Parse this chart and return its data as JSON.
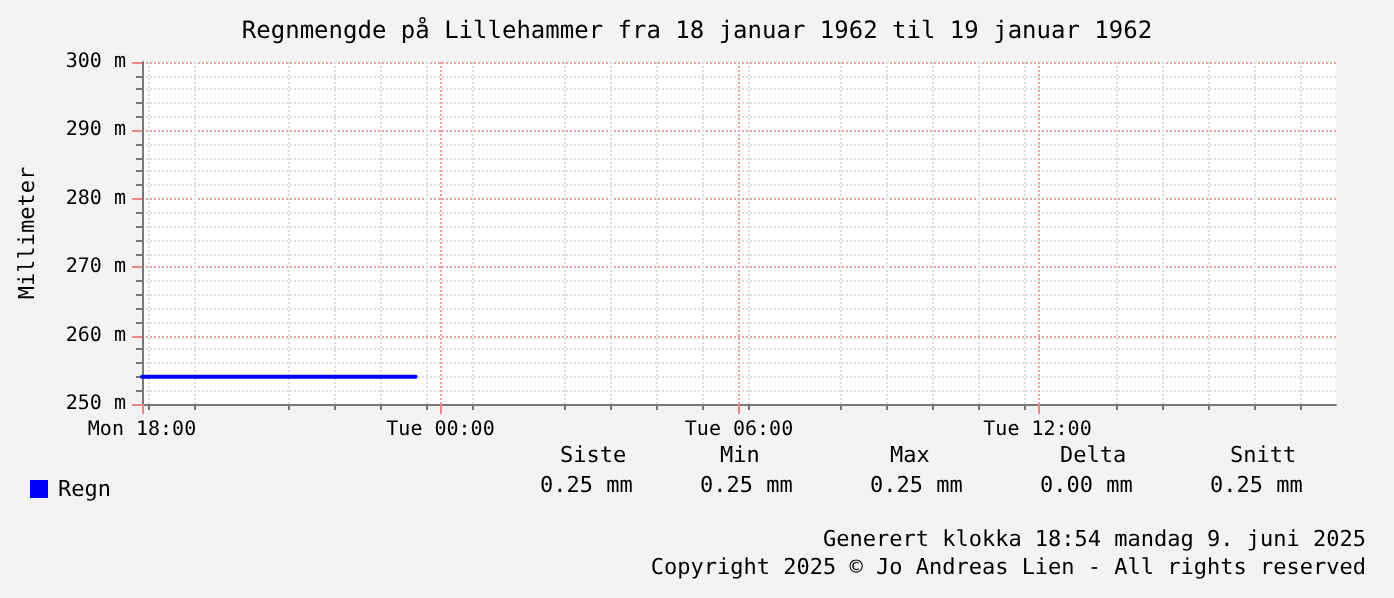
{
  "chart_data": {
    "type": "line",
    "title": "Regnmengde på Lillehammer fra 18 januar 1962 til 19 januar 1962",
    "ylabel": "Millimeter",
    "x": [
      "1962-01-18T18:00",
      "1962-01-18T23:30"
    ],
    "series": [
      {
        "name": "Regn",
        "color": "#0000ff",
        "values": [
          254,
          254
        ]
      }
    ],
    "xlim": [
      "1962-01-18T18:00",
      "1962-01-19T18:00"
    ],
    "xticks": [
      {
        "value": "1962-01-18T18:00",
        "label": "Mon 18:00"
      },
      {
        "value": "1962-01-19T00:00",
        "label": "Tue 00:00"
      },
      {
        "value": "1962-01-19T06:00",
        "label": "Tue 06:00"
      },
      {
        "value": "1962-01-19T12:00",
        "label": "Tue 12:00"
      }
    ],
    "ylim": [
      250,
      300
    ],
    "yticks": [
      {
        "value": 250,
        "label": "250 m"
      },
      {
        "value": 260,
        "label": "260 m"
      },
      {
        "value": 270,
        "label": "270 m"
      },
      {
        "value": 280,
        "label": "280 m"
      },
      {
        "value": 290,
        "label": "290 m"
      },
      {
        "value": 300,
        "label": "300 m"
      }
    ],
    "grid": true,
    "legend": "bottom left",
    "marker": "none",
    "line_style": "solid",
    "annotations": [
      "Siste",
      "Min",
      "Max",
      "Delta",
      "Snitt",
      "0.25 mm",
      "0.25 mm",
      "0.25 mm",
      "0.00 mm",
      "0.25 mm",
      "Generert klokka 18:54 mandag 9. juni 2025",
      "Copyright 2025 © Jo Andreas Lien - All rights reserved"
    ]
  }
}
